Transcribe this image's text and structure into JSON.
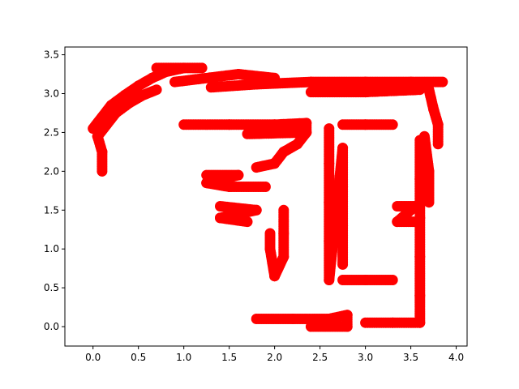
{
  "chart_data": {
    "type": "scatter",
    "title": "",
    "xlabel": "",
    "ylabel": "",
    "xlim": [
      -0.31,
      4.12
    ],
    "ylim": [
      -0.25,
      3.6
    ],
    "xticks": [
      0.0,
      0.5,
      1.0,
      1.5,
      2.0,
      2.5,
      3.0,
      3.5,
      4.0
    ],
    "xtick_labels": [
      "0.0",
      "0.5",
      "1.0",
      "1.5",
      "2.0",
      "2.5",
      "3.0",
      "3.5",
      "4.0"
    ],
    "yticks": [
      0.0,
      0.5,
      1.0,
      1.5,
      2.0,
      2.5,
      3.0,
      3.5
    ],
    "ytick_labels": [
      "0.0",
      "0.5",
      "1.0",
      "1.5",
      "2.0",
      "2.5",
      "3.0",
      "3.5"
    ],
    "grid": false,
    "legend": "none",
    "marker_color": "#ff0000",
    "marker_shape": "circle",
    "strokes": [
      {
        "name": "arc-left-stub",
        "points": [
          [
            0.1,
            2.0
          ],
          [
            0.1,
            2.25
          ],
          [
            0.05,
            2.45
          ],
          [
            0.1,
            2.6
          ]
        ]
      },
      {
        "name": "arc-top",
        "points": [
          [
            0.0,
            2.55
          ],
          [
            0.1,
            2.7
          ],
          [
            0.2,
            2.85
          ],
          [
            0.35,
            2.98
          ],
          [
            0.5,
            3.1
          ],
          [
            0.65,
            3.2
          ],
          [
            0.8,
            3.28
          ],
          [
            1.0,
            3.33
          ]
        ]
      },
      {
        "name": "arc-inner",
        "points": [
          [
            0.05,
            2.45
          ],
          [
            0.15,
            2.6
          ],
          [
            0.25,
            2.75
          ],
          [
            0.4,
            2.88
          ],
          [
            0.55,
            2.98
          ],
          [
            0.7,
            3.05
          ]
        ]
      },
      {
        "name": "top-block-left",
        "points": [
          [
            0.7,
            3.33
          ],
          [
            1.2,
            3.33
          ]
        ]
      },
      {
        "name": "top-block-mid",
        "points": [
          [
            0.9,
            3.15
          ],
          [
            1.6,
            3.25
          ],
          [
            2.0,
            3.2
          ]
        ]
      },
      {
        "name": "top-bar",
        "points": [
          [
            1.3,
            3.08
          ],
          [
            1.8,
            3.12
          ],
          [
            2.4,
            3.15
          ],
          [
            3.0,
            3.15
          ],
          [
            3.5,
            3.15
          ],
          [
            3.85,
            3.15
          ]
        ]
      },
      {
        "name": "top-bar-under",
        "points": [
          [
            2.4,
            3.02
          ],
          [
            3.0,
            3.02
          ],
          [
            3.6,
            3.05
          ]
        ]
      },
      {
        "name": "right-col-upper",
        "points": [
          [
            3.7,
            3.05
          ],
          [
            3.75,
            2.8
          ],
          [
            3.8,
            2.6
          ],
          [
            3.8,
            2.35
          ]
        ]
      },
      {
        "name": "right-col-outer",
        "points": [
          [
            3.65,
            2.45
          ],
          [
            3.7,
            2.0
          ],
          [
            3.7,
            1.6
          ]
        ]
      },
      {
        "name": "right-col-inner",
        "points": [
          [
            3.6,
            2.4
          ],
          [
            3.6,
            1.9
          ],
          [
            3.6,
            1.4
          ],
          [
            3.6,
            0.9
          ],
          [
            3.6,
            0.4
          ],
          [
            3.6,
            0.05
          ]
        ]
      },
      {
        "name": "right-small-box",
        "points": [
          [
            3.35,
            1.55
          ],
          [
            3.55,
            1.55
          ],
          [
            3.35,
            1.35
          ],
          [
            3.55,
            1.35
          ]
        ]
      },
      {
        "name": "bottom-right-bar",
        "points": [
          [
            3.0,
            0.05
          ],
          [
            3.3,
            0.05
          ],
          [
            3.6,
            0.05
          ]
        ]
      },
      {
        "name": "bottom-mid-bar",
        "points": [
          [
            1.8,
            0.1
          ],
          [
            2.2,
            0.1
          ],
          [
            2.6,
            0.1
          ],
          [
            2.8,
            0.15
          ],
          [
            2.8,
            0.0
          ],
          [
            2.4,
            0.0
          ]
        ]
      },
      {
        "name": "mid-left-bar",
        "points": [
          [
            1.0,
            2.6
          ],
          [
            1.5,
            2.6
          ],
          [
            2.0,
            2.6
          ],
          [
            2.35,
            2.62
          ],
          [
            2.35,
            2.5
          ],
          [
            1.7,
            2.48
          ]
        ]
      },
      {
        "name": "diag-mid",
        "points": [
          [
            2.35,
            2.5
          ],
          [
            2.25,
            2.35
          ],
          [
            2.1,
            2.25
          ],
          [
            2.0,
            2.1
          ],
          [
            1.8,
            2.05
          ]
        ]
      },
      {
        "name": "mid-block-left",
        "points": [
          [
            1.25,
            1.95
          ],
          [
            1.6,
            1.95
          ],
          [
            1.25,
            1.85
          ],
          [
            1.5,
            1.8
          ],
          [
            1.9,
            1.8
          ]
        ]
      },
      {
        "name": "mid-block-lower",
        "points": [
          [
            1.4,
            1.55
          ],
          [
            1.8,
            1.5
          ],
          [
            1.4,
            1.4
          ],
          [
            1.7,
            1.35
          ]
        ]
      },
      {
        "name": "mid-vertical",
        "points": [
          [
            2.1,
            1.5
          ],
          [
            2.1,
            1.2
          ],
          [
            2.1,
            0.9
          ],
          [
            2.0,
            0.65
          ],
          [
            1.95,
            1.0
          ],
          [
            1.95,
            1.2
          ]
        ]
      },
      {
        "name": "bracket-vertical",
        "points": [
          [
            2.6,
            2.55
          ],
          [
            2.6,
            2.1
          ],
          [
            2.6,
            1.6
          ],
          [
            2.6,
            1.1
          ],
          [
            2.6,
            0.6
          ],
          [
            2.75,
            2.3
          ],
          [
            2.75,
            1.8
          ],
          [
            2.75,
            1.3
          ],
          [
            2.75,
            0.8
          ]
        ]
      },
      {
        "name": "bracket-top",
        "points": [
          [
            2.75,
            2.6
          ],
          [
            3.0,
            2.6
          ],
          [
            3.3,
            2.6
          ]
        ]
      },
      {
        "name": "bracket-bottom",
        "points": [
          [
            2.75,
            0.6
          ],
          [
            3.0,
            0.6
          ],
          [
            3.3,
            0.6
          ]
        ]
      }
    ]
  }
}
